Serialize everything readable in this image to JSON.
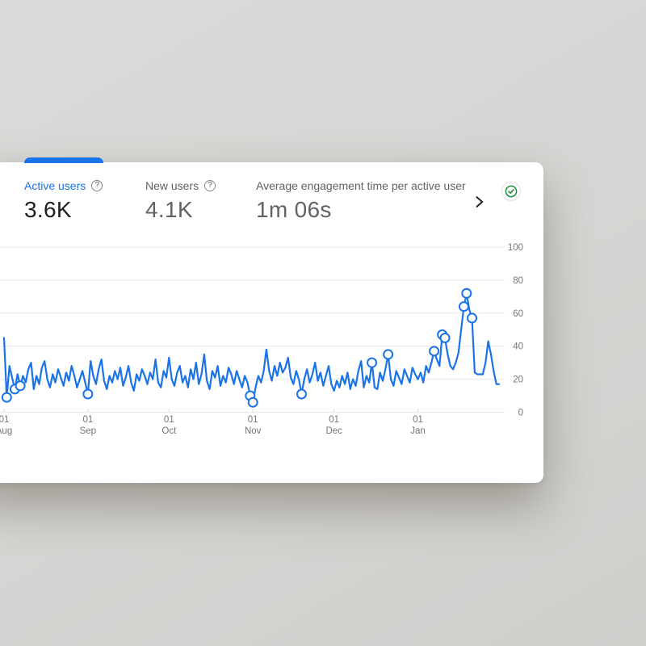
{
  "page": {
    "background_color": "#d6d5d3"
  },
  "card": {
    "active_tab_color": "#1a73e8",
    "help_icon_glyph": "?",
    "metrics": [
      {
        "label": "Active users",
        "value": "3.6K",
        "selected": true,
        "has_help_icon": true
      },
      {
        "label": "New users",
        "value": "4.1K",
        "selected": false,
        "has_help_icon": true
      },
      {
        "label": "Average engagement time per active user",
        "value": "1m 06s",
        "selected": false,
        "has_help_icon": false
      }
    ]
  },
  "chart_data": {
    "type": "line",
    "series_name": "Active users",
    "x_unit": "day",
    "x_ticks": [
      {
        "day": 0,
        "line1": "01",
        "line2": "Aug"
      },
      {
        "day": 31,
        "line1": "01",
        "line2": "Sep"
      },
      {
        "day": 61,
        "line1": "01",
        "line2": "Oct"
      },
      {
        "day": 92,
        "line1": "01",
        "line2": "Nov"
      },
      {
        "day": 122,
        "line1": "01",
        "line2": "Dec"
      },
      {
        "day": 153,
        "line1": "01",
        "line2": "Jan"
      }
    ],
    "y_ticks": [
      0,
      20,
      40,
      60,
      80,
      100
    ],
    "ylim": [
      0,
      100
    ],
    "grid": "horizontal",
    "legend": "none",
    "y_axis_position": "right",
    "line_color": "#1a73e8",
    "grid_color": "#e8e8e8",
    "tick_color": "#d9dadc",
    "axis_label_color": "#757575",
    "marker_fill": "#ffffff",
    "values": [
      45,
      9,
      28,
      21,
      14,
      23,
      16,
      22,
      18,
      26,
      30,
      14,
      22,
      17,
      27,
      31,
      20,
      15,
      23,
      18,
      26,
      21,
      16,
      24,
      19,
      28,
      22,
      15,
      20,
      25,
      18,
      11,
      31,
      22,
      17,
      26,
      32,
      19,
      14,
      22,
      18,
      25,
      20,
      27,
      16,
      21,
      28,
      18,
      13,
      23,
      19,
      26,
      22,
      17,
      24,
      20,
      32,
      18,
      15,
      25,
      21,
      33,
      20,
      16,
      24,
      28,
      18,
      22,
      15,
      26,
      20,
      30,
      17,
      23,
      35,
      19,
      14,
      25,
      21,
      28,
      16,
      22,
      18,
      27,
      23,
      17,
      25,
      20,
      15,
      22,
      18,
      10,
      6,
      15,
      22,
      18,
      25,
      38,
      25,
      19,
      28,
      22,
      30,
      24,
      27,
      33,
      21,
      17,
      25,
      20,
      11,
      20,
      26,
      18,
      23,
      30,
      19,
      24,
      16,
      22,
      28,
      17,
      13,
      19,
      15,
      22,
      17,
      24,
      14,
      20,
      16,
      25,
      31,
      15,
      22,
      18,
      30,
      15,
      14,
      24,
      19,
      26,
      35,
      20,
      16,
      25,
      21,
      17,
      26,
      22,
      18,
      27,
      23,
      20,
      24,
      18,
      28,
      24,
      30,
      37,
      32,
      28,
      47,
      45,
      35,
      28,
      26,
      30,
      36,
      50,
      64,
      72,
      62,
      57,
      24,
      23,
      23,
      23,
      30,
      43,
      35,
      25,
      17,
      17
    ],
    "anomaly_marker_indices": [
      1,
      4,
      6,
      31,
      91,
      92,
      110,
      136,
      142,
      159,
      162,
      163,
      170,
      171,
      173
    ]
  }
}
